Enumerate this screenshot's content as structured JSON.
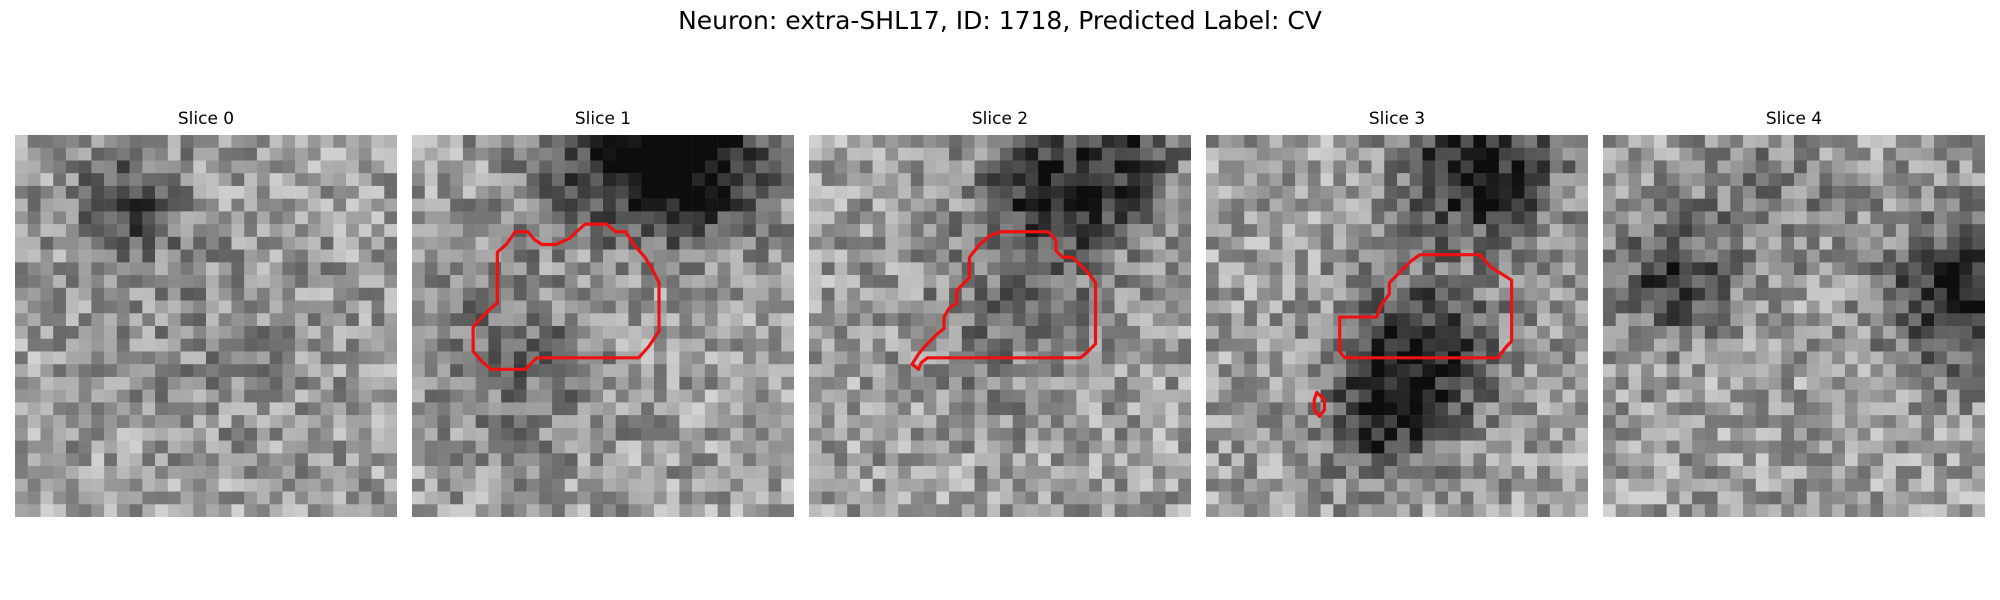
{
  "figure": {
    "title": "Neuron: extra-SHL17, ID: 1718, Predicted Label: CV"
  },
  "panels": [
    {
      "title": "Slice 0"
    },
    {
      "title": "Slice 1"
    },
    {
      "title": "Slice 2"
    },
    {
      "title": "Slice 3"
    },
    {
      "title": "Slice 4"
    }
  ],
  "colors": {
    "contour": "#ee1111",
    "background": "#ffffff"
  }
}
